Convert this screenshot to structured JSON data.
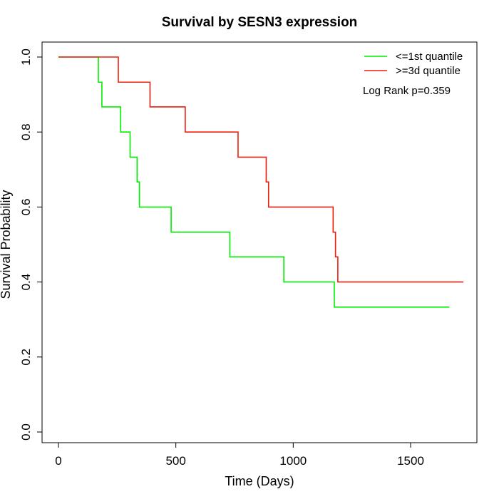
{
  "chart_data": {
    "type": "line",
    "title": "Survival by SESN3 expression",
    "xlabel": "Time (Days)",
    "ylabel": "Survival Probability",
    "xlim": [
      0,
      1780
    ],
    "ylim": [
      0,
      1.0
    ],
    "x_ticks": [
      0,
      500,
      1000,
      1500
    ],
    "y_ticks": [
      0.0,
      0.2,
      0.4,
      0.6,
      0.8,
      1.0
    ],
    "x_tick_labels": [
      "0",
      "500",
      "1000",
      "1500"
    ],
    "y_tick_labels": [
      "0.0",
      "0.2",
      "0.4",
      "0.6",
      "0.8",
      "1.0"
    ],
    "grid": false,
    "legend_position": "top-right",
    "annotation": "Log Rank p=0.359",
    "series": [
      {
        "name": "<=1st quantile",
        "color": "#00ee00",
        "step": true,
        "x": [
          0,
          170,
          185,
          265,
          305,
          335,
          345,
          480,
          730,
          960,
          1175,
          1665
        ],
        "y": [
          1.0,
          0.933,
          0.867,
          0.8,
          0.733,
          0.667,
          0.6,
          0.533,
          0.467,
          0.4,
          0.333,
          0.333
        ]
      },
      {
        "name": ">=3d quantile",
        "color": "#ee1c0e",
        "step": true,
        "x": [
          0,
          255,
          390,
          540,
          765,
          885,
          895,
          1170,
          1180,
          1190,
          1200,
          1725
        ],
        "y": [
          1.0,
          0.933,
          0.867,
          0.8,
          0.733,
          0.667,
          0.6,
          0.533,
          0.467,
          0.4,
          0.4,
          0.4
        ]
      }
    ]
  }
}
